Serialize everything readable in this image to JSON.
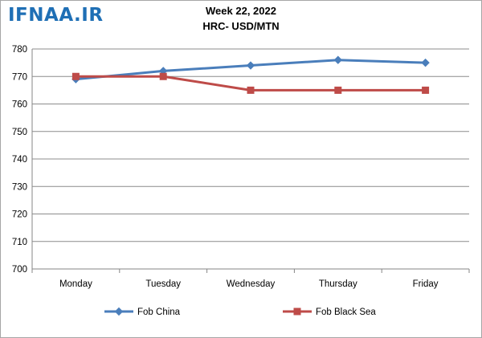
{
  "watermark": "IFNAA.IR",
  "chart_data": {
    "type": "line",
    "title": "Week 22, 2022",
    "subtitle": "HRC- USD/MTN",
    "xlabel": "",
    "ylabel": "",
    "categories": [
      "Monday",
      "Tuesday",
      "Wednesday",
      "Thursday",
      "Friday"
    ],
    "ylim": [
      700,
      780
    ],
    "yticks": [
      700,
      710,
      720,
      730,
      740,
      750,
      760,
      770,
      780
    ],
    "grid": true,
    "legend_position": "bottom",
    "series": [
      {
        "name": "Fob China",
        "color": "#4a7ebb",
        "marker": "diamond",
        "values": [
          769,
          772,
          774,
          776,
          775
        ]
      },
      {
        "name": "Fob Black Sea",
        "color": "#be4b48",
        "marker": "square",
        "values": [
          770,
          770,
          765,
          765,
          765
        ]
      }
    ]
  }
}
